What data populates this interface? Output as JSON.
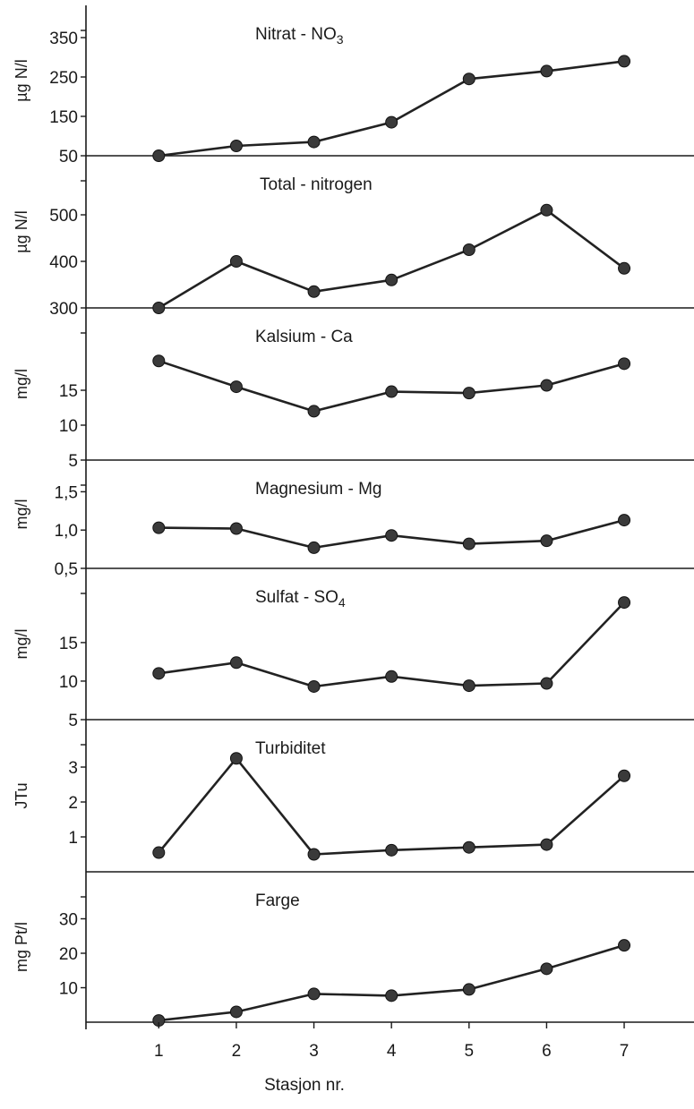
{
  "chart_data": {
    "type": "line",
    "layout": "stacked-panels",
    "xlabel": "Stasjon nr.",
    "x": [
      1,
      2,
      3,
      4,
      5,
      6,
      7
    ],
    "xlim": [
      0.05,
      7.9
    ],
    "grid": false,
    "panels": [
      {
        "title_main": "Nitrat - NO",
        "title_sub": "3",
        "ylabel": "µg N/l",
        "ylim": [
          50,
          400
        ],
        "yticks": [
          50,
          150,
          250,
          350
        ],
        "ytick_labels": [
          "50",
          "150",
          "250",
          "350"
        ],
        "values": [
          50,
          75,
          85,
          135,
          245,
          265,
          290
        ]
      },
      {
        "title_main": "Total - nitrogen",
        "title_sub": "",
        "ylabel": "µg N/l",
        "ylim": [
          300,
          600
        ],
        "yticks": [
          300,
          400,
          500
        ],
        "ytick_labels": [
          "300",
          "400",
          "500"
        ],
        "values": [
          300,
          400,
          335,
          360,
          425,
          510,
          385
        ]
      },
      {
        "title_main": "Kalsium - Ca",
        "title_sub": "",
        "ylabel": "mg/l",
        "ylim": [
          5,
          25
        ],
        "yticks": [
          5,
          10,
          15
        ],
        "ytick_labels": [
          "5",
          "10",
          "15"
        ],
        "values": [
          19.2,
          15.5,
          12,
          14.8,
          14.6,
          15.7,
          18.8
        ]
      },
      {
        "title_main": "Magnesium - Mg",
        "title_sub": "",
        "ylabel": "mg/l",
        "ylim": [
          0.5,
          1.75
        ],
        "yticks": [
          0.5,
          1.0,
          1.5
        ],
        "ytick_labels": [
          "0,5",
          "1,0",
          "1,5"
        ],
        "values": [
          1.03,
          1.02,
          0.77,
          0.93,
          0.82,
          0.86,
          1.13
        ]
      },
      {
        "title_main": "Sulfat - SO",
        "title_sub": "4",
        "ylabel": "mg/l",
        "ylim": [
          5,
          23
        ],
        "yticks": [
          5,
          10,
          15
        ],
        "ytick_labels": [
          "5",
          "10",
          "15"
        ],
        "values": [
          11,
          12.4,
          9.3,
          10.6,
          9.4,
          9.7,
          20.2
        ]
      },
      {
        "title_main": "Turbiditet",
        "title_sub": "",
        "ylabel": "JTu",
        "ylim": [
          0,
          4
        ],
        "yticks": [
          1,
          2,
          3
        ],
        "ytick_labels": [
          "1",
          "2",
          "3"
        ],
        "values": [
          0.55,
          3.25,
          0.5,
          0.62,
          0.7,
          0.78,
          2.75
        ]
      },
      {
        "title_main": "Farge",
        "title_sub": "",
        "ylabel": "mg Pt/l",
        "ylim": [
          0,
          40
        ],
        "yticks": [
          10,
          20,
          30
        ],
        "ytick_labels": [
          "10",
          "20",
          "30"
        ],
        "values": [
          0.5,
          3,
          8.2,
          7.7,
          9.5,
          15.5,
          22.3
        ]
      }
    ]
  }
}
